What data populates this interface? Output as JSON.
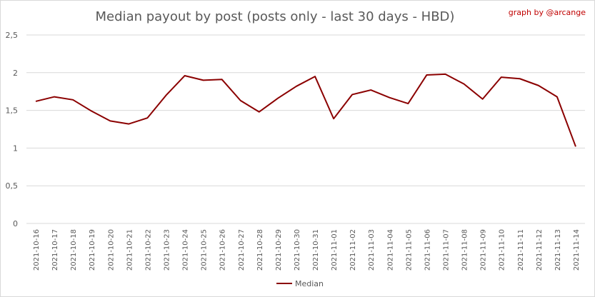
{
  "chart_data": {
    "type": "line",
    "title": "Median payout by post (posts only - last 30 days - HBD)",
    "credit": "graph by @arcange",
    "xlabel": "",
    "ylabel": "",
    "ylim": [
      0,
      2.5
    ],
    "yticks": [
      "0",
      "0,5",
      "1",
      "1,5",
      "2",
      "2,5"
    ],
    "ytick_values": [
      0,
      0.5,
      1,
      1.5,
      2,
      2.5
    ],
    "grid": true,
    "legend_position": "bottom",
    "categories": [
      "2021-10-16",
      "2021-10-17",
      "2021-10-18",
      "2021-10-19",
      "2021-10-20",
      "2021-10-21",
      "2021-10-22",
      "2021-10-23",
      "2021-10-24",
      "2021-10-25",
      "2021-10-26",
      "2021-10-27",
      "2021-10-28",
      "2021-10-29",
      "2021-10-30",
      "2021-10-31",
      "2021-11-01",
      "2021-11-02",
      "2021-11-03",
      "2021-11-04",
      "2021-11-05",
      "2021-11-06",
      "2021-11-07",
      "2021-11-08",
      "2021-11-09",
      "2021-11-10",
      "2021-11-11",
      "2021-11-12",
      "2021-11-13",
      "2021-11-14"
    ],
    "series": [
      {
        "name": "Median",
        "color": "#8b0000",
        "values": [
          1.62,
          1.68,
          1.64,
          1.49,
          1.36,
          1.32,
          1.4,
          1.7,
          1.96,
          1.9,
          1.91,
          1.63,
          1.48,
          1.66,
          1.82,
          1.95,
          1.39,
          1.71,
          1.77,
          1.67,
          1.59,
          1.97,
          1.98,
          1.85,
          1.65,
          1.94,
          1.92,
          1.83,
          1.68,
          1.02
        ]
      }
    ]
  }
}
